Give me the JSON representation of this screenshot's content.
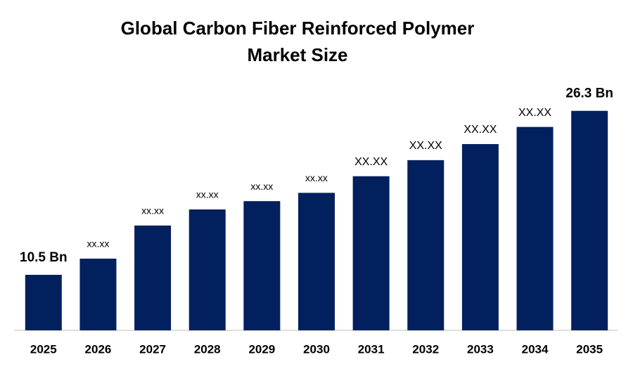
{
  "chart_data": {
    "type": "bar",
    "title": [
      "Global Carbon Fiber Reinforced Polymer",
      "Market Size"
    ],
    "categories": [
      "2025",
      "2026",
      "2027",
      "2028",
      "2029",
      "2030",
      "2031",
      "2032",
      "2033",
      "2034",
      "2035"
    ],
    "values": [
      10.5,
      12.06,
      15.25,
      16.8,
      17.6,
      18.4,
      20.0,
      21.55,
      23.1,
      24.75,
      26.3
    ],
    "value_labels": [
      "10.5 Bn",
      "xx.xx",
      "xx.xx",
      "xx.xx",
      "xx.xx",
      "xx.xx",
      "XX.XX",
      "XX.XX",
      "XX.XX",
      "XX.XX",
      "26.3 Bn"
    ],
    "color": "#03205e",
    "ylim": [
      5.15,
      27.5
    ]
  }
}
